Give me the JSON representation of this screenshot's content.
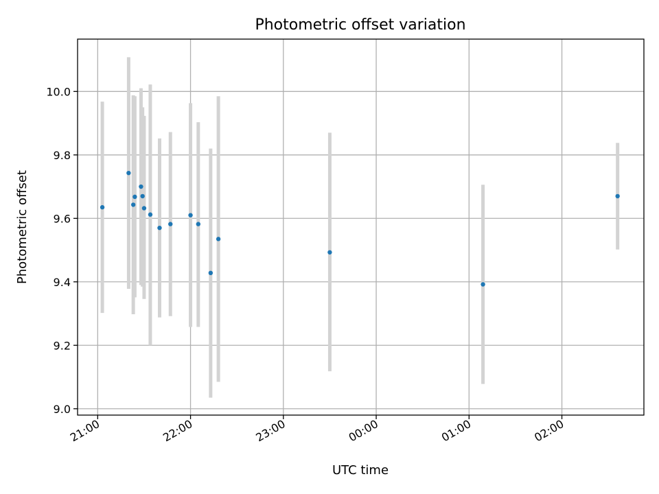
{
  "chart_data": {
    "type": "scatter",
    "title": "Photometric offset variation",
    "xlabel": "UTC time",
    "ylabel": "Photometric offset",
    "grid": true,
    "x_axis": {
      "kind": "time",
      "range": [
        "2023-01-01T20:47",
        "2023-01-02T02:53"
      ],
      "ticks": [
        {
          "t": "2023-01-01T21:00",
          "label": "21:00"
        },
        {
          "t": "2023-01-01T22:00",
          "label": "22:00"
        },
        {
          "t": "2023-01-01T23:00",
          "label": "23:00"
        },
        {
          "t": "2023-01-02T00:00",
          "label": "00:00"
        },
        {
          "t": "2023-01-02T01:00",
          "label": "01:00"
        },
        {
          "t": "2023-01-02T02:00",
          "label": "02:00"
        }
      ]
    },
    "y_axis": {
      "range": [
        8.98,
        10.165
      ],
      "ticks": [
        {
          "v": 9.0,
          "label": "9.0"
        },
        {
          "v": 9.2,
          "label": "9.2"
        },
        {
          "v": 9.4,
          "label": "9.4"
        },
        {
          "v": 9.6,
          "label": "9.6"
        },
        {
          "v": 9.8,
          "label": "9.8"
        },
        {
          "v": 10.0,
          "label": "10.0"
        }
      ]
    },
    "colors": {
      "marker": "#1f77b4",
      "errorbar": "#d3d3d3"
    },
    "points": [
      {
        "t": "2023-01-01T21:03",
        "y": 9.635,
        "lo": 9.302,
        "hi": 9.968
      },
      {
        "t": "2023-01-01T21:20",
        "y": 9.743,
        "lo": 9.378,
        "hi": 10.108
      },
      {
        "t": "2023-01-01T21:23",
        "y": 9.643,
        "lo": 9.298,
        "hi": 9.988
      },
      {
        "t": "2023-01-01T21:24",
        "y": 9.668,
        "lo": 9.351,
        "hi": 9.985
      },
      {
        "t": "2023-01-01T21:28",
        "y": 9.7,
        "lo": 9.39,
        "hi": 10.01
      },
      {
        "t": "2023-01-01T21:29",
        "y": 9.67,
        "lo": 9.385,
        "hi": 9.95
      },
      {
        "t": "2023-01-01T21:30",
        "y": 9.632,
        "lo": 9.346,
        "hi": 9.923
      },
      {
        "t": "2023-01-01T21:34",
        "y": 9.612,
        "lo": 9.2,
        "hi": 10.022
      },
      {
        "t": "2023-01-01T21:40",
        "y": 9.57,
        "lo": 9.288,
        "hi": 9.852
      },
      {
        "t": "2023-01-01T21:47",
        "y": 9.582,
        "lo": 9.292,
        "hi": 9.872
      },
      {
        "t": "2023-01-01T22:00",
        "y": 9.61,
        "lo": 9.258,
        "hi": 9.963
      },
      {
        "t": "2023-01-01T22:05",
        "y": 9.582,
        "lo": 9.258,
        "hi": 9.903
      },
      {
        "t": "2023-01-01T22:13",
        "y": 9.428,
        "lo": 9.035,
        "hi": 9.82
      },
      {
        "t": "2023-01-01T22:18",
        "y": 9.535,
        "lo": 9.085,
        "hi": 9.985
      },
      {
        "t": "2023-01-01T23:30",
        "y": 9.493,
        "lo": 9.118,
        "hi": 9.87
      },
      {
        "t": "2023-01-02T01:09",
        "y": 9.392,
        "lo": 9.078,
        "hi": 9.706
      },
      {
        "t": "2023-01-02T02:36",
        "y": 9.67,
        "lo": 9.502,
        "hi": 9.838
      }
    ]
  }
}
